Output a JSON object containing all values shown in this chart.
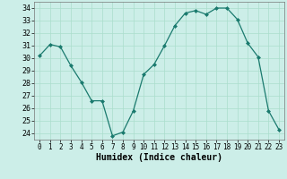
{
  "x": [
    0,
    1,
    2,
    3,
    4,
    5,
    6,
    7,
    8,
    9,
    10,
    11,
    12,
    13,
    14,
    15,
    16,
    17,
    18,
    19,
    20,
    21,
    22,
    23
  ],
  "y": [
    30.2,
    31.1,
    30.9,
    29.4,
    28.1,
    26.6,
    26.6,
    23.8,
    24.1,
    25.8,
    28.7,
    29.5,
    31.0,
    32.6,
    33.6,
    33.8,
    33.5,
    34.0,
    34.0,
    33.1,
    31.2,
    30.1,
    25.8,
    24.3
  ],
  "xlabel": "Humidex (Indice chaleur)",
  "ylim": [
    23.5,
    34.5
  ],
  "yticks": [
    24,
    25,
    26,
    27,
    28,
    29,
    30,
    31,
    32,
    33,
    34
  ],
  "xticks": [
    0,
    1,
    2,
    3,
    4,
    5,
    6,
    7,
    8,
    9,
    10,
    11,
    12,
    13,
    14,
    15,
    16,
    17,
    18,
    19,
    20,
    21,
    22,
    23
  ],
  "xlim": [
    -0.5,
    23.5
  ],
  "line_color": "#1a7a6e",
  "marker_color": "#1a7a6e",
  "bg_color": "#cceee8",
  "grid_color": "#aaddcc",
  "xlabel_fontsize": 7,
  "tick_fontsize": 5.5,
  "ytick_fontsize": 6
}
